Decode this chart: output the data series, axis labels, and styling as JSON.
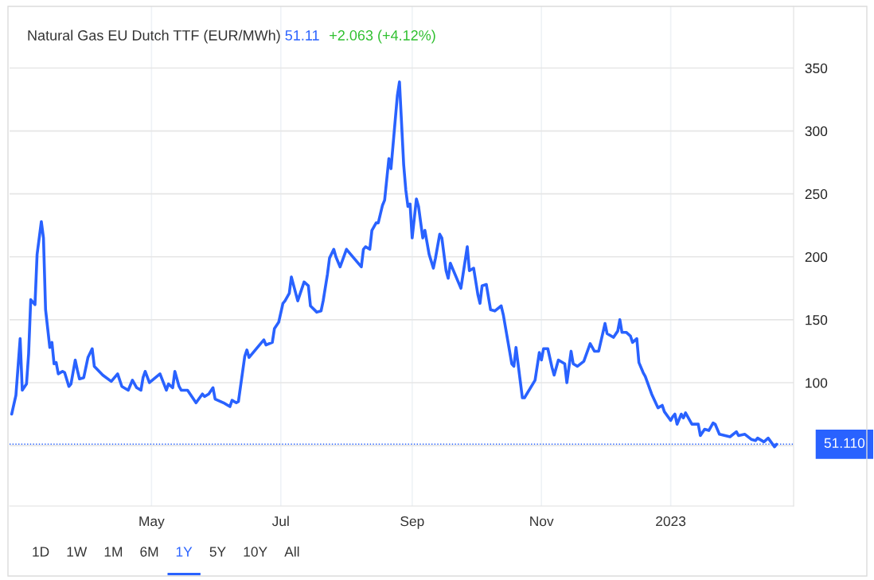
{
  "chart_data": {
    "type": "line",
    "title": "Natural Gas EU Dutch TTF (EUR/MWh)",
    "annotations": [
      "51.11",
      "+2.063 (+4.12%)",
      "1D",
      "1W",
      "1M",
      "6M",
      "1Y",
      "5Y",
      "10Y",
      "All"
    ],
    "x": [
      "2022-02-24",
      "2022-02-26",
      "2022-02-28",
      "2022-03-01",
      "2022-03-03",
      "2022-03-04",
      "2022-03-05",
      "2022-03-07",
      "2022-03-08",
      "2022-03-10",
      "2022-03-11",
      "2022-03-12",
      "2022-03-14",
      "2022-03-15",
      "2022-03-16",
      "2022-03-17",
      "2022-03-18",
      "2022-03-20",
      "2022-03-21",
      "2022-03-23",
      "2022-03-24",
      "2022-03-26",
      "2022-03-27",
      "2022-03-28",
      "2022-03-30",
      "2022-04-01",
      "2022-04-03",
      "2022-04-04",
      "2022-04-08",
      "2022-04-12",
      "2022-04-15",
      "2022-04-17",
      "2022-04-20",
      "2022-04-22",
      "2022-04-24",
      "2022-04-26",
      "2022-04-27",
      "2022-04-28",
      "2022-04-30",
      "2022-05-05",
      "2022-05-08",
      "2022-05-09",
      "2022-05-11",
      "2022-05-12",
      "2022-05-14",
      "2022-05-15",
      "2022-05-18",
      "2022-05-22",
      "2022-05-25",
      "2022-05-26",
      "2022-05-28",
      "2022-05-30",
      "2022-05-31",
      "2022-06-04",
      "2022-06-07",
      "2022-06-08",
      "2022-06-10",
      "2022-06-11",
      "2022-06-12",
      "2022-06-14",
      "2022-06-15",
      "2022-06-16",
      "2022-06-20",
      "2022-06-23",
      "2022-06-24",
      "2022-06-27",
      "2022-06-28",
      "2022-06-30",
      "2022-07-02",
      "2022-07-03",
      "2022-07-05",
      "2022-07-06",
      "2022-07-09",
      "2022-07-12",
      "2022-07-14",
      "2022-07-15",
      "2022-07-18",
      "2022-07-20",
      "2022-07-21",
      "2022-07-23",
      "2022-07-24",
      "2022-07-26",
      "2022-07-27",
      "2022-07-29",
      "2022-08-01",
      "2022-08-04",
      "2022-08-08",
      "2022-08-09",
      "2022-08-10",
      "2022-08-12",
      "2022-08-13",
      "2022-08-15",
      "2022-08-16",
      "2022-08-18",
      "2022-08-19",
      "2022-08-21",
      "2022-08-22",
      "2022-08-25",
      "2022-08-26",
      "2022-08-28",
      "2022-08-29",
      "2022-08-30",
      "2022-08-31",
      "2022-09-01",
      "2022-09-03",
      "2022-09-04",
      "2022-09-06",
      "2022-09-07",
      "2022-09-09",
      "2022-09-11",
      "2022-09-12",
      "2022-09-14",
      "2022-09-15",
      "2022-09-17",
      "2022-09-18",
      "2022-09-19",
      "2022-09-24",
      "2022-09-27",
      "2022-09-28",
      "2022-09-30",
      "2022-10-02",
      "2022-10-03",
      "2022-10-04",
      "2022-10-06",
      "2022-10-08",
      "2022-10-10",
      "2022-10-13",
      "2022-10-14",
      "2022-10-18",
      "2022-10-19",
      "2022-10-20",
      "2022-10-23",
      "2022-10-24",
      "2022-10-29",
      "2022-10-31",
      "2022-11-01",
      "2022-11-02",
      "2022-11-04",
      "2022-11-06",
      "2022-11-07",
      "2022-11-09",
      "2022-11-12",
      "2022-11-13",
      "2022-11-15",
      "2022-11-16",
      "2022-11-18",
      "2022-11-21",
      "2022-11-24",
      "2022-11-26",
      "2022-11-28",
      "2022-12-01",
      "2022-12-02",
      "2022-12-05",
      "2022-12-07",
      "2022-12-08",
      "2022-12-09",
      "2022-12-11",
      "2022-12-13",
      "2022-12-14",
      "2022-12-16",
      "2022-12-17",
      "2022-12-19",
      "2022-12-20",
      "2022-12-23",
      "2022-12-26",
      "2022-12-28",
      "2022-12-29",
      "2023-01-01",
      "2023-01-02",
      "2023-01-03",
      "2023-01-04",
      "2023-01-06",
      "2023-01-07",
      "2023-01-08",
      "2023-01-11",
      "2023-01-14",
      "2023-01-15",
      "2023-01-17",
      "2023-01-19",
      "2023-01-21",
      "2023-01-22",
      "2023-01-24",
      "2023-01-29",
      "2023-02-01",
      "2023-02-02",
      "2023-02-05",
      "2023-02-08",
      "2023-02-10",
      "2023-02-11",
      "2023-02-14",
      "2023-02-16",
      "2023-02-19",
      "2023-02-20"
    ],
    "series": [
      {
        "color": "#2962ff",
        "values": [
          75,
          90,
          135,
          94,
          99,
          123,
          166,
          162,
          202,
          228,
          215,
          158,
          128,
          132,
          115,
          116,
          107,
          109,
          108,
          97,
          99,
          118,
          110,
          103,
          104,
          120,
          127,
          113,
          106,
          101,
          107,
          97,
          94,
          102,
          96,
          94,
          104,
          109,
          100,
          107,
          94,
          99,
          96,
          109,
          97,
          94,
          94,
          84,
          91,
          89,
          91,
          96,
          87,
          84,
          81,
          86,
          84,
          85,
          97,
          121,
          126,
          120,
          128,
          134,
          130,
          132,
          143,
          148,
          163,
          165,
          171,
          184,
          165,
          180,
          177,
          161,
          156,
          157,
          165,
          186,
          199,
          206,
          200,
          192,
          206,
          200,
          192,
          206,
          208,
          206,
          221,
          227,
          227,
          241,
          245,
          278,
          270,
          328,
          339,
          273,
          253,
          240,
          242,
          215,
          246,
          240,
          215,
          221,
          202,
          191,
          199,
          218,
          215,
          189,
          183,
          195,
          175,
          208,
          189,
          191,
          170,
          163,
          177,
          178,
          158,
          157,
          161,
          154,
          115,
          113,
          128,
          88,
          88,
          102,
          124,
          118,
          127,
          127,
          112,
          106,
          118,
          115,
          100,
          125,
          115,
          113,
          117,
          131,
          125,
          125,
          147,
          139,
          136,
          141,
          150,
          140,
          140,
          137,
          132,
          135,
          116,
          108,
          105,
          91,
          80,
          82,
          77,
          70,
          73,
          75,
          67,
          75,
          72,
          76,
          67,
          67,
          58,
          63,
          62,
          68,
          67,
          59,
          57,
          61,
          58,
          59,
          55,
          54,
          56,
          53,
          56,
          49,
          51.11
        ]
      }
    ],
    "xlim": [
      "2022-02-23",
      "2023-02-28"
    ],
    "xticks": [
      {
        "value": "2022-05-01",
        "label": "May"
      },
      {
        "value": "2022-07-01",
        "label": "Jul"
      },
      {
        "value": "2022-09-01",
        "label": "Sep"
      },
      {
        "value": "2022-11-01",
        "label": "Nov"
      },
      {
        "value": "2023-01-01",
        "label": "2023"
      }
    ],
    "ylim": [
      2,
      399
    ],
    "yticks": [
      {
        "value": 50,
        "label": null
      },
      100,
      150,
      200,
      250,
      300,
      350
    ],
    "grid": true,
    "marker": "none",
    "line_style": "solid",
    "ref_lines": [
      {
        "axis": "y",
        "value": 51.11,
        "label": "51.110",
        "color": "#2962ff",
        "line_style": "dotted"
      }
    ]
  }
}
